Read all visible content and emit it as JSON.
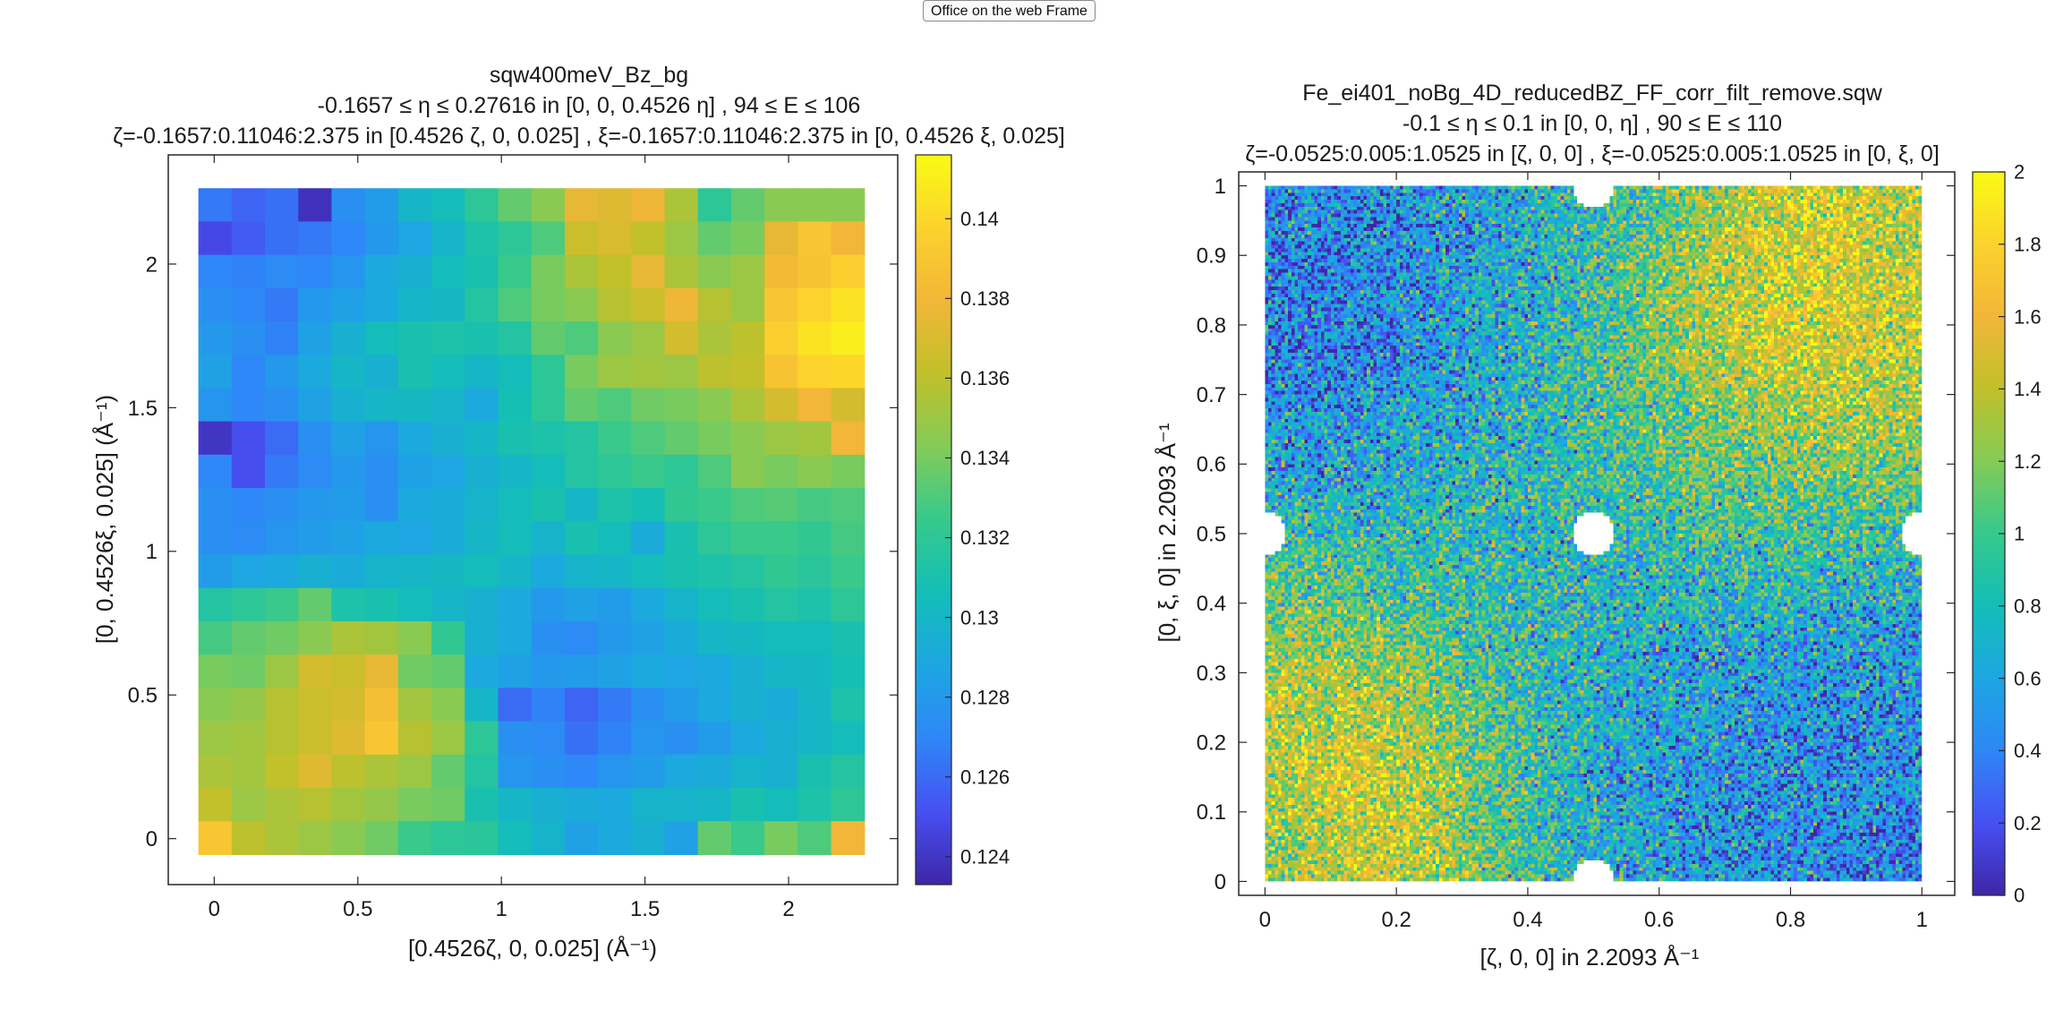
{
  "frame": {
    "label": "Office on the web Frame"
  },
  "chart_data": [
    {
      "type": "heatmap",
      "title_lines": [
        "sqw400meV_Bz_bg",
        "-0.1657 ≤ η ≤ 0.27616 in [0, 0, 0.4526 η] , 94 ≤ E ≤ 106",
        "ζ=-0.1657:0.11046:2.375 in [0.4526 ζ, 0, 0.025] , ξ=-0.1657:0.11046:2.375 in [0, 0.4526 ξ, 0.025]"
      ],
      "xlabel": "[0.4526ζ, 0, 0.025] (Å⁻¹)",
      "ylabel": "[0, 0.4526ξ, 0.025] (Å⁻¹)",
      "xlim": [
        -0.16,
        2.38
      ],
      "ylim": [
        -0.16,
        2.38
      ],
      "xticks": [
        "0",
        "0.5",
        "1",
        "1.5",
        "2"
      ],
      "yticks": [
        "0",
        "0.5",
        "1",
        "1.5",
        "2"
      ],
      "x_range": [
        -0.0552,
        2.264
      ],
      "y_range": [
        -0.0552,
        2.264
      ],
      "colormap": "parula",
      "clim": [
        0.1233,
        0.1416
      ],
      "colorbar_ticks": [
        "0.124",
        "0.126",
        "0.128",
        "0.13",
        "0.132",
        "0.134",
        "0.136",
        "0.138",
        "0.14"
      ],
      "z_rows_top_to_bottom": [
        [
          0.1265,
          0.1258,
          0.1262,
          0.1238,
          0.1275,
          0.1282,
          0.13,
          0.1305,
          0.132,
          0.1335,
          0.1345,
          0.1375,
          0.1372,
          0.1378,
          0.1355,
          0.132,
          0.1335,
          0.1345,
          0.1345,
          0.1345
        ],
        [
          0.1248,
          0.1255,
          0.1262,
          0.1265,
          0.127,
          0.128,
          0.1288,
          0.1298,
          0.1312,
          0.132,
          0.133,
          0.1365,
          0.137,
          0.1362,
          0.135,
          0.1335,
          0.134,
          0.1375,
          0.139,
          0.138
        ],
        [
          0.127,
          0.1268,
          0.1272,
          0.127,
          0.1278,
          0.129,
          0.1295,
          0.1305,
          0.131,
          0.1325,
          0.134,
          0.1355,
          0.1362,
          0.1375,
          0.1355,
          0.1345,
          0.135,
          0.1382,
          0.1388,
          0.1395
        ],
        [
          0.1275,
          0.127,
          0.1265,
          0.128,
          0.1285,
          0.129,
          0.13,
          0.1302,
          0.1315,
          0.133,
          0.134,
          0.1345,
          0.1358,
          0.1365,
          0.1378,
          0.1358,
          0.135,
          0.139,
          0.1398,
          0.1405
        ],
        [
          0.128,
          0.1275,
          0.1268,
          0.1285,
          0.1295,
          0.1305,
          0.131,
          0.1312,
          0.131,
          0.1315,
          0.1335,
          0.133,
          0.1345,
          0.135,
          0.1368,
          0.1355,
          0.136,
          0.1395,
          0.1405,
          0.141
        ],
        [
          0.1285,
          0.127,
          0.128,
          0.129,
          0.13,
          0.1295,
          0.131,
          0.1305,
          0.13,
          0.1305,
          0.132,
          0.134,
          0.135,
          0.1352,
          0.135,
          0.136,
          0.1362,
          0.1388,
          0.1398,
          0.14
        ],
        [
          0.1278,
          0.127,
          0.1275,
          0.1285,
          0.1295,
          0.13,
          0.1302,
          0.1298,
          0.129,
          0.1308,
          0.132,
          0.1335,
          0.133,
          0.1338,
          0.134,
          0.1345,
          0.1355,
          0.1368,
          0.138,
          0.1368
        ],
        [
          0.124,
          0.125,
          0.126,
          0.1275,
          0.1285,
          0.1278,
          0.129,
          0.1295,
          0.13,
          0.131,
          0.1312,
          0.1315,
          0.1325,
          0.133,
          0.1335,
          0.134,
          0.1345,
          0.135,
          0.1352,
          0.138
        ],
        [
          0.127,
          0.125,
          0.1265,
          0.1272,
          0.128,
          0.1275,
          0.1285,
          0.1288,
          0.1295,
          0.13,
          0.1305,
          0.1315,
          0.132,
          0.1325,
          0.132,
          0.133,
          0.1345,
          0.134,
          0.1345,
          0.134
        ],
        [
          0.1275,
          0.127,
          0.1275,
          0.128,
          0.1282,
          0.1275,
          0.129,
          0.1292,
          0.1298,
          0.1305,
          0.131,
          0.13,
          0.1312,
          0.1308,
          0.1322,
          0.1325,
          0.133,
          0.1332,
          0.1328,
          0.133
        ],
        [
          0.1275,
          0.1272,
          0.1278,
          0.1282,
          0.1285,
          0.129,
          0.1288,
          0.1292,
          0.13,
          0.1305,
          0.1298,
          0.131,
          0.1305,
          0.1292,
          0.131,
          0.132,
          0.1325,
          0.1325,
          0.1322,
          0.1328
        ],
        [
          0.1282,
          0.1288,
          0.129,
          0.1295,
          0.1292,
          0.1298,
          0.13,
          0.1302,
          0.1305,
          0.13,
          0.129,
          0.1298,
          0.13,
          0.1305,
          0.131,
          0.1312,
          0.1315,
          0.1322,
          0.1318,
          0.1325
        ],
        [
          0.1315,
          0.132,
          0.1325,
          0.1335,
          0.1312,
          0.131,
          0.1305,
          0.13,
          0.1295,
          0.129,
          0.128,
          0.1285,
          0.1282,
          0.129,
          0.1298,
          0.1305,
          0.131,
          0.1315,
          0.1312,
          0.132
        ],
        [
          0.1328,
          0.1335,
          0.1338,
          0.1345,
          0.1355,
          0.1352,
          0.1345,
          0.1322,
          0.1295,
          0.129,
          0.1275,
          0.1272,
          0.128,
          0.1285,
          0.1292,
          0.13,
          0.1302,
          0.1305,
          0.1305,
          0.131
        ],
        [
          0.134,
          0.1338,
          0.135,
          0.1368,
          0.1365,
          0.1375,
          0.1338,
          0.1335,
          0.129,
          0.1285,
          0.128,
          0.1282,
          0.1285,
          0.129,
          0.1288,
          0.129,
          0.1295,
          0.13,
          0.1302,
          0.1308
        ],
        [
          0.1345,
          0.1348,
          0.1358,
          0.1365,
          0.1368,
          0.1385,
          0.1352,
          0.1345,
          0.13,
          0.126,
          0.1268,
          0.1258,
          0.1265,
          0.1275,
          0.1282,
          0.129,
          0.1295,
          0.1292,
          0.13,
          0.1312
        ],
        [
          0.135,
          0.1352,
          0.1358,
          0.1365,
          0.1372,
          0.139,
          0.1358,
          0.135,
          0.132,
          0.1275,
          0.1272,
          0.1262,
          0.1268,
          0.1278,
          0.1275,
          0.1282,
          0.129,
          0.1295,
          0.13,
          0.1305
        ],
        [
          0.1355,
          0.1352,
          0.1362,
          0.1372,
          0.136,
          0.1355,
          0.135,
          0.1335,
          0.1315,
          0.1278,
          0.1275,
          0.127,
          0.1278,
          0.1282,
          0.129,
          0.1292,
          0.1298,
          0.1295,
          0.131,
          0.1315
        ],
        [
          0.1362,
          0.135,
          0.1355,
          0.1358,
          0.1352,
          0.1348,
          0.134,
          0.1338,
          0.131,
          0.13,
          0.1295,
          0.1292,
          0.129,
          0.1298,
          0.1298,
          0.13,
          0.131,
          0.1305,
          0.1312,
          0.132
        ],
        [
          0.139,
          0.136,
          0.1355,
          0.135,
          0.1345,
          0.1338,
          0.1325,
          0.132,
          0.1318,
          0.1305,
          0.1298,
          0.1285,
          0.129,
          0.1295,
          0.1285,
          0.1335,
          0.1325,
          0.134,
          0.133,
          0.138
        ]
      ]
    },
    {
      "type": "heatmap",
      "title_lines": [
        "Fe_ei401_noBg_4D_reducedBZ_FF_corr_filt_remove.sqw",
        "-0.1 ≤ η ≤ 0.1 in [0, 0, η] , 90 ≤ E ≤ 110",
        "ζ=-0.0525:0.005:1.0525 in [ζ, 0, 0] , ξ=-0.0525:0.005:1.0525 in [0, ξ, 0]"
      ],
      "xlabel": "[ζ, 0, 0] in 2.2093 Å⁻¹",
      "ylabel": "[0, ξ, 0] in 2.2093 Å⁻¹",
      "xlim": [
        -0.04,
        1.05
      ],
      "ylim": [
        -0.02,
        1.02
      ],
      "xticks": [
        "0",
        "0.2",
        "0.4",
        "0.6",
        "0.8",
        "1"
      ],
      "yticks": [
        "0",
        "0.1",
        "0.2",
        "0.3",
        "0.4",
        "0.5",
        "0.6",
        "0.7",
        "0.8",
        "0.9",
        "1"
      ],
      "x_range": [
        0,
        1
      ],
      "y_range": [
        0,
        1
      ],
      "colormap": "parula",
      "clim": [
        0,
        2
      ],
      "colorbar_ticks": [
        "0",
        "0.2",
        "0.4",
        "0.6",
        "0.8",
        "1",
        "1.2",
        "1.4",
        "1.6",
        "1.8",
        "2"
      ],
      "z_mean_coarse_top_to_bottom": [
        [
          0.45,
          0.45,
          0.55,
          0.65,
          0.8,
          0.95,
          1.2,
          1.5,
          1.55,
          1.4
        ],
        [
          0.4,
          0.45,
          0.55,
          0.65,
          0.8,
          1.05,
          1.35,
          1.6,
          1.6,
          1.5
        ],
        [
          0.4,
          0.45,
          0.55,
          0.7,
          0.85,
          1.05,
          1.3,
          1.45,
          1.55,
          1.5
        ],
        [
          0.55,
          0.6,
          0.65,
          0.75,
          0.85,
          1.0,
          1.15,
          1.25,
          1.35,
          1.3
        ],
        [
          0.75,
          0.7,
          0.75,
          0.8,
          0.85,
          0.9,
          1.0,
          1.05,
          1.1,
          1.05
        ],
        [
          1.0,
          0.95,
          0.9,
          0.85,
          0.8,
          0.8,
          0.85,
          0.85,
          0.85,
          0.8
        ],
        [
          1.25,
          1.2,
          1.05,
          0.9,
          0.8,
          0.7,
          0.7,
          0.65,
          0.6,
          0.6
        ],
        [
          1.45,
          1.45,
          1.25,
          1.0,
          0.8,
          0.65,
          0.6,
          0.55,
          0.5,
          0.5
        ],
        [
          1.45,
          1.55,
          1.4,
          1.05,
          0.8,
          0.65,
          0.55,
          0.5,
          0.5,
          0.5
        ],
        [
          1.3,
          1.5,
          1.45,
          1.05,
          0.8,
          0.65,
          0.55,
          0.5,
          0.45,
          0.45
        ]
      ],
      "z_spread": 0.5,
      "holes": [
        {
          "x": 0.5,
          "y": 0.5,
          "r": 0.032
        },
        {
          "x": 0.5,
          "y": 1.0,
          "r": 0.032
        },
        {
          "x": 0.5,
          "y": 0.0,
          "r": 0.032
        },
        {
          "x": 0.0,
          "y": 0.5,
          "r": 0.032
        },
        {
          "x": 1.0,
          "y": 0.5,
          "r": 0.032
        }
      ]
    }
  ]
}
